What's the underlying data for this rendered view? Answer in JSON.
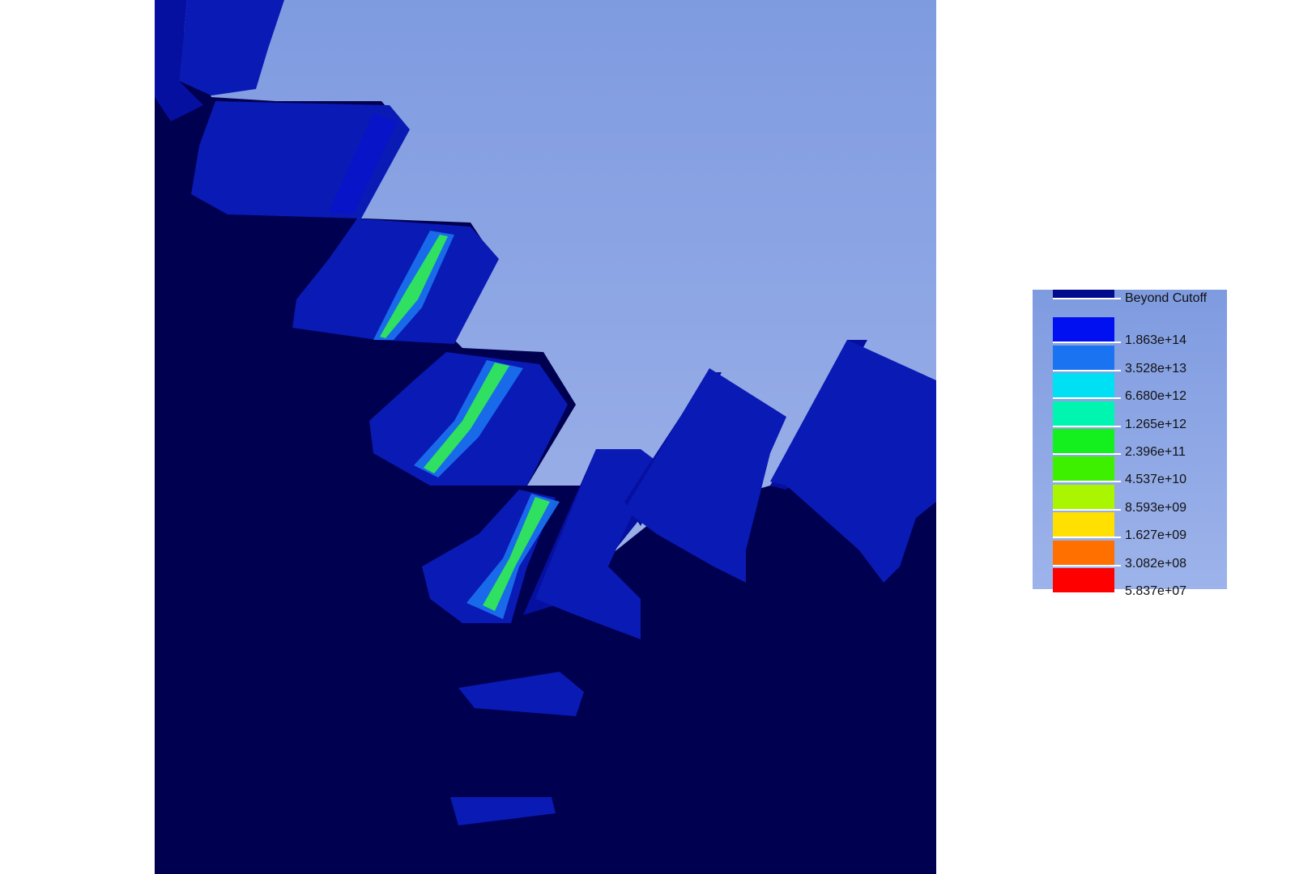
{
  "legend": {
    "entries": [
      {
        "label": "Beyond Cutoff",
        "color": "#000a8c"
      },
      {
        "label": "1.863e+14",
        "color": "#0010f0"
      },
      {
        "label": "3.528e+13",
        "color": "#1a73f0"
      },
      {
        "label": "6.680e+12",
        "color": "#00e0f5"
      },
      {
        "label": "1.265e+12",
        "color": "#00f5b0"
      },
      {
        "label": "2.396e+11",
        "color": "#14f01e"
      },
      {
        "label": "4.537e+10",
        "color": "#3cf000"
      },
      {
        "label": "8.593e+09",
        "color": "#aaf500"
      },
      {
        "label": "1.627e+09",
        "color": "#ffe000"
      },
      {
        "label": "3.082e+08",
        "color": "#ff7000"
      },
      {
        "label": "5.837e+07",
        "color": "#ff0000"
      }
    ]
  },
  "colors": {
    "background_top": "#7f9be0",
    "background_bottom": "#a9bbec",
    "gear_dark": "#000050",
    "gear_face": "#0a1ab4",
    "gear_face_dark": "#0610a0",
    "hotspot_green": "#30e060",
    "hotspot_cyan": "#1aa0f0"
  }
}
